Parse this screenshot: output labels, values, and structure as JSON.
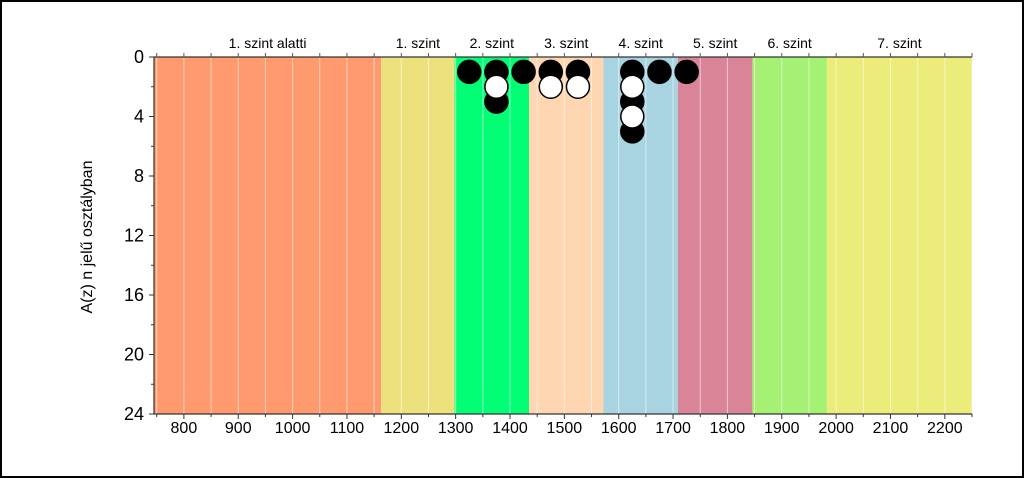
{
  "chart_data": {
    "type": "scatter",
    "title": "",
    "xlabel": "",
    "ylabel": "A(z) n jelű osztályban",
    "xlim": [
      745,
      2250
    ],
    "ylim": [
      24,
      0
    ],
    "x_ticks": [
      800,
      900,
      1000,
      1100,
      1200,
      1300,
      1400,
      1500,
      1600,
      1700,
      1800,
      1900,
      2000,
      2100,
      2200
    ],
    "y_ticks": [
      0,
      4,
      8,
      12,
      16,
      20,
      24
    ],
    "bands": [
      {
        "label": "1. szint alatti",
        "x0": 745,
        "x1": 1163,
        "color": "#FF9A6E"
      },
      {
        "label": "1. szint",
        "x0": 1163,
        "x1": 1298,
        "color": "#EDE17E"
      },
      {
        "label": "2. szint",
        "x0": 1298,
        "x1": 1435,
        "color": "#00FF74"
      },
      {
        "label": "3. szint",
        "x0": 1435,
        "x1": 1572,
        "color": "#FFD6B2"
      },
      {
        "label": "4. szint",
        "x0": 1572,
        "x1": 1709,
        "color": "#A8D3E1"
      },
      {
        "label": "5. szint",
        "x0": 1709,
        "x1": 1846,
        "color": "#DA8497"
      },
      {
        "label": "6. szint",
        "x0": 1846,
        "x1": 1983,
        "color": "#A5F173"
      },
      {
        "label": "7. szint",
        "x0": 1983,
        "x1": 2250,
        "color": "#EBEC7A"
      }
    ],
    "series": [
      {
        "marker": "black",
        "points": [
          {
            "x": 1325,
            "y": 1
          },
          {
            "x": 1375,
            "y": 1
          },
          {
            "x": 1375,
            "y": 3
          },
          {
            "x": 1425,
            "y": 1
          },
          {
            "x": 1475,
            "y": 1
          },
          {
            "x": 1525,
            "y": 1
          },
          {
            "x": 1625,
            "y": 1
          },
          {
            "x": 1625,
            "y": 3
          },
          {
            "x": 1625,
            "y": 5
          },
          {
            "x": 1675,
            "y": 1
          },
          {
            "x": 1725,
            "y": 1
          }
        ]
      },
      {
        "marker": "white",
        "points": [
          {
            "x": 1375,
            "y": 2
          },
          {
            "x": 1475,
            "y": 2
          },
          {
            "x": 1525,
            "y": 2
          },
          {
            "x": 1625,
            "y": 2
          },
          {
            "x": 1625,
            "y": 4
          }
        ]
      }
    ],
    "grid": "vertical"
  }
}
